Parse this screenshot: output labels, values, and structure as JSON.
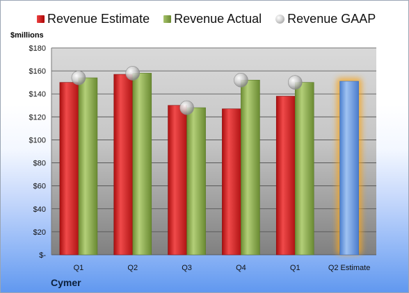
{
  "legend": {
    "estimate": "Revenue Estimate",
    "actual": "Revenue Actual",
    "gaap": "Revenue GAAP"
  },
  "colors": {
    "estimate": "#c81e1e",
    "actual": "#8aa84a",
    "gaap": "#b8b8b8",
    "estimate_projection": "#6e9ee0",
    "highlight_glow": "#f5a623"
  },
  "chart_data": {
    "type": "bar",
    "ylabel": "$millions",
    "ylim": [
      0,
      180
    ],
    "yticks": [
      "$-",
      "$20",
      "$40",
      "$60",
      "$80",
      "$100",
      "$120",
      "$140",
      "$160",
      "$180"
    ],
    "categories": [
      "Q1",
      "Q2",
      "Q3",
      "Q4",
      "Q1",
      "Q2 Estimate"
    ],
    "series": [
      {
        "name": "Revenue Estimate",
        "values": [
          150,
          157,
          130,
          127,
          138,
          null
        ]
      },
      {
        "name": "Revenue Actual",
        "values": [
          154,
          158,
          128,
          152,
          150,
          null
        ]
      },
      {
        "name": "Revenue GAAP",
        "values": [
          154,
          158,
          128,
          152,
          150,
          null
        ]
      }
    ],
    "projection": {
      "category": "Q2 Estimate",
      "value": 151
    },
    "grid": true,
    "legend_position": "top"
  },
  "footer": {
    "company": "Cymer"
  }
}
